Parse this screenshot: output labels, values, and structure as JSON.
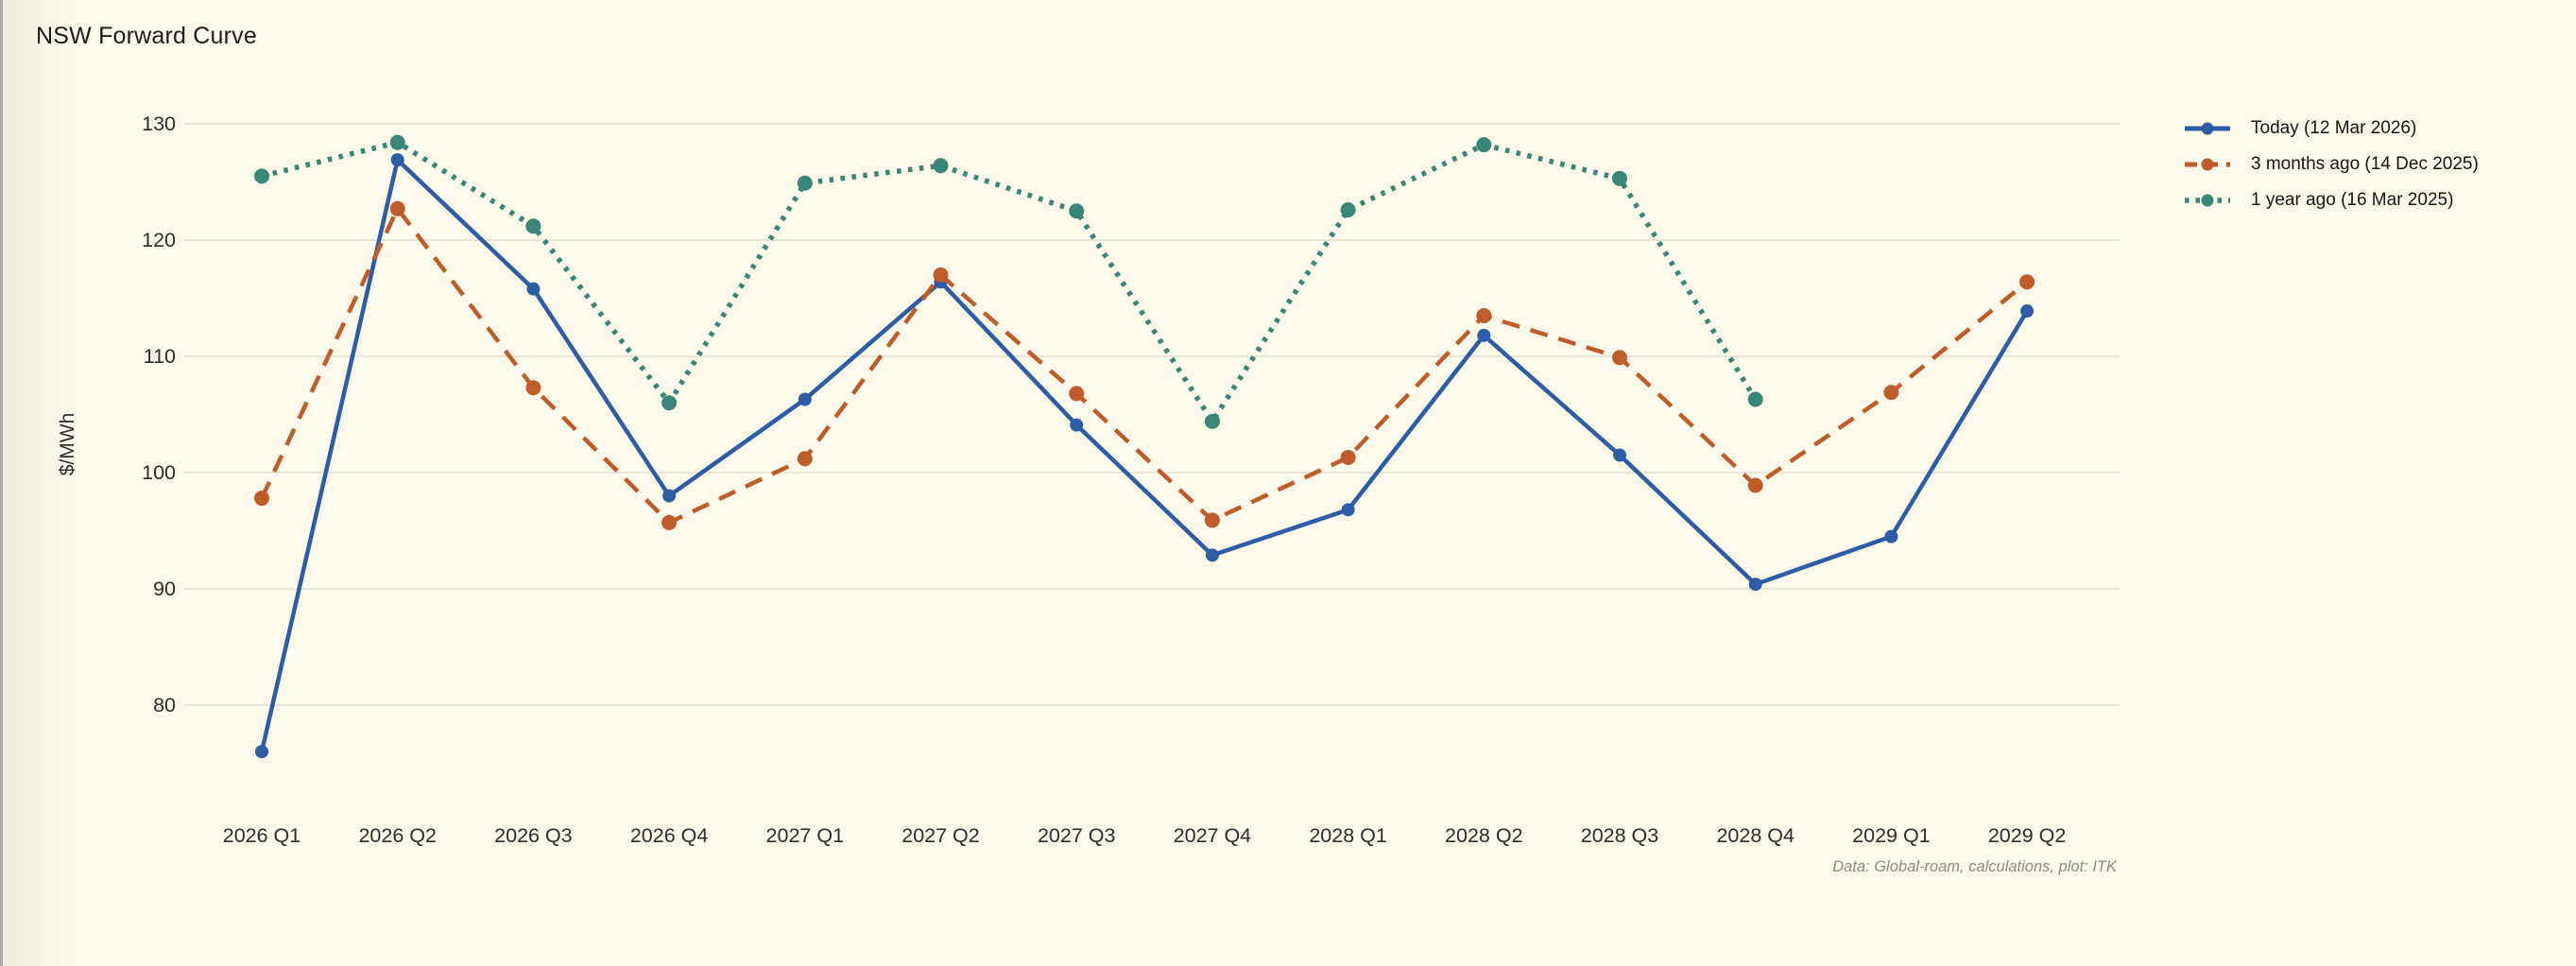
{
  "chart_data": {
    "type": "line",
    "title": "NSW Forward Curve",
    "ylabel": "$/MWh",
    "source_note": "Data: Global-roam, calculations, plot: ITK",
    "grid": "horizontal-only",
    "legend_position": "top-right-outside",
    "yticks": [
      80,
      90,
      100,
      110,
      120,
      130
    ],
    "ylim": [
      72,
      132
    ],
    "categories": [
      "2026 Q1",
      "2026 Q2",
      "2026 Q3",
      "2026 Q4",
      "2027 Q1",
      "2027 Q2",
      "2027 Q3",
      "2027 Q4",
      "2028 Q1",
      "2028 Q2",
      "2028 Q3",
      "2028 Q4",
      "2029 Q1",
      "2029 Q2"
    ],
    "series": [
      {
        "id": "today",
        "name": "Today (12 Mar 2026)",
        "color": "#2e5da6",
        "line_style": "solid",
        "values": [
          76.0,
          126.9,
          115.8,
          98.0,
          106.3,
          116.4,
          104.1,
          92.9,
          96.8,
          111.8,
          101.5,
          90.4,
          94.5,
          113.9
        ]
      },
      {
        "id": "three-months-ago",
        "name": "3 months ago (14 Dec 2025)",
        "color": "#bf5c2b",
        "line_style": "dashed",
        "values": [
          97.8,
          122.7,
          107.3,
          95.7,
          101.2,
          117.0,
          106.8,
          95.9,
          101.3,
          113.5,
          109.9,
          98.9,
          106.9,
          116.4
        ]
      },
      {
        "id": "one-year-ago",
        "name": "1 year ago (16 Mar 2025)",
        "color": "#3b8578",
        "line_style": "dotted",
        "values": [
          125.5,
          128.4,
          121.2,
          106.0,
          124.9,
          126.4,
          122.5,
          104.4,
          122.6,
          128.2,
          125.3,
          106.3,
          null,
          null
        ]
      }
    ],
    "colors": {
      "background": "#fdfaec",
      "gridline": "#e8e5d7",
      "tick_label": "#2d2d2d",
      "title_text": "#1c1c1c",
      "source_text": "#8e8d84",
      "window_edge": "#a8a8a8"
    }
  }
}
